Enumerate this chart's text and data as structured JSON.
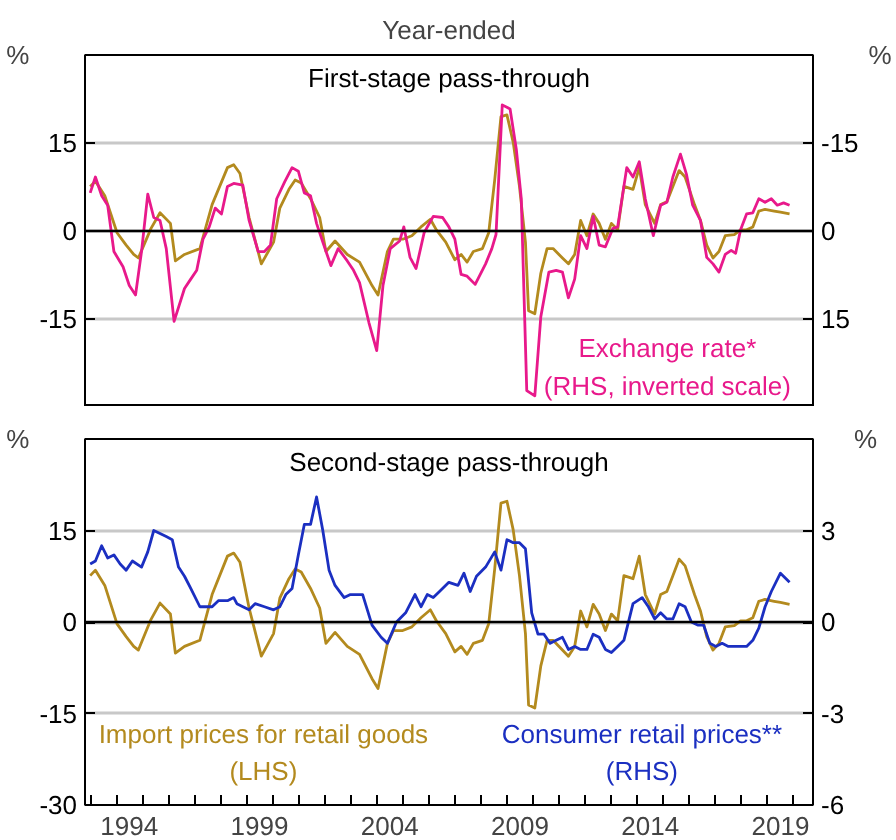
{
  "chart_data": [
    {
      "type": "line",
      "subtitle": "Year-ended",
      "title": "First-stage pass-through",
      "ylabel": "%",
      "y2label": "%",
      "xlim": [
        1992.8,
        2020.75
      ],
      "ylim": [
        -30,
        30
      ],
      "yticks": [
        -15,
        0,
        15
      ],
      "y2lim": [
        30,
        -30
      ],
      "y2ticks": [
        -15,
        0,
        15
      ],
      "grid": "y",
      "tick_labels": "y",
      "ref_lines": [
        {
          "axis": "y",
          "value": 0,
          "color": "#000000"
        }
      ],
      "series": [
        {
          "color": "#b38a1e",
          "x": [
            1993.0,
            1993.2,
            1993.56,
            1994.03,
            1994.38,
            1994.67,
            1994.85,
            1995.33,
            1995.68,
            1996.08,
            1996.27,
            1996.62,
            1997.21,
            1997.68,
            1998.27,
            1998.51,
            1998.75,
            1999.1,
            1999.57,
            2000.04,
            2000.28,
            2000.63,
            2000.87,
            2001.1,
            2001.46,
            2001.81,
            2002.05,
            2002.4,
            2002.87,
            2003.34,
            2003.82,
            2004.05,
            2004.41,
            2004.64,
            2005.0,
            2005.35,
            2005.7,
            2006.06,
            2006.29,
            2006.65,
            2007.0,
            2007.24,
            2007.47,
            2007.71,
            2008.06,
            2008.3,
            2008.53,
            2008.77,
            2009.0,
            2009.24,
            2009.48,
            2009.71,
            2009.83,
            2010.07,
            2010.3,
            2010.54,
            2010.77,
            2011.13,
            2011.36,
            2011.6,
            2011.83,
            2012.07,
            2012.31,
            2012.54,
            2012.78,
            2013.01,
            2013.25,
            2013.49,
            2013.84,
            2014.08,
            2014.31,
            2014.67,
            2014.9,
            2015.14,
            2015.37,
            2015.61,
            2015.84,
            2016.2,
            2016.43,
            2016.67,
            2016.91,
            2017.14,
            2017.38,
            2017.73,
            2017.97,
            2018.2,
            2018.44,
            2018.67,
            2018.91,
            2019.26,
            2019.5,
            2019.85
          ],
          "values": [
            7.6,
            8.5,
            6.0,
            -0.3,
            -2.4,
            -4.0,
            -4.6,
            0.4,
            3.1,
            1.3,
            -5.1,
            -4.0,
            -3.0,
            4.5,
            10.8,
            11.3,
            9.8,
            2.3,
            -5.6,
            -1.9,
            3.9,
            7.1,
            8.7,
            8.2,
            5.5,
            2.3,
            -3.5,
            -1.7,
            -4.0,
            -5.3,
            -9.3,
            -10.9,
            -3.5,
            -1.4,
            -1.4,
            -0.8,
            0.7,
            2.0,
            0.2,
            -1.9,
            -4.9,
            -4.0,
            -5.3,
            -3.5,
            -3.0,
            -0.3,
            8.7,
            19.5,
            19.8,
            15.1,
            7.6,
            -1.9,
            -13.6,
            -14.1,
            -7.2,
            -3.0,
            -3.0,
            -4.6,
            -5.6,
            -4.0,
            1.8,
            -0.8,
            2.9,
            1.3,
            -1.4,
            1.3,
            0.2,
            7.6,
            7.1,
            10.8,
            4.5,
            1.3,
            4.5,
            5.0,
            7.6,
            10.3,
            9.2,
            4.5,
            1.8,
            -2.4,
            -4.6,
            -3.5,
            -0.8,
            -0.6,
            0.2,
            0.2,
            0.7,
            3.4,
            3.7,
            3.4,
            3.2,
            2.9
          ]
        },
        {
          "name": "Exchange rate*\n(RHS, inverted scale)",
          "color": "#e8198b",
          "axis": "y2",
          "x": [
            1993.0,
            1993.2,
            1993.44,
            1993.67,
            1993.91,
            1994.26,
            1994.5,
            1994.74,
            1994.97,
            1995.21,
            1995.44,
            1995.68,
            1995.92,
            1996.22,
            1996.62,
            1996.86,
            1997.09,
            1997.33,
            1997.57,
            1997.8,
            1998.04,
            1998.27,
            1998.51,
            1998.86,
            1999.1,
            1999.45,
            1999.69,
            1999.92,
            2000.16,
            2000.47,
            2000.75,
            2000.99,
            2001.22,
            2001.46,
            2001.69,
            2001.93,
            2002.24,
            2002.52,
            2002.87,
            2003.11,
            2003.34,
            2003.7,
            2004.0,
            2004.24,
            2004.52,
            2004.88,
            2005.04,
            2005.28,
            2005.51,
            2005.82,
            2006.17,
            2006.53,
            2006.77,
            2007.0,
            2007.24,
            2007.47,
            2007.78,
            2008.18,
            2008.42,
            2008.58,
            2008.82,
            2009.12,
            2009.36,
            2009.55,
            2009.76,
            2010.07,
            2010.3,
            2010.61,
            2010.89,
            2011.13,
            2011.36,
            2011.6,
            2011.83,
            2012.07,
            2012.31,
            2012.54,
            2012.78,
            2013.06,
            2013.25,
            2013.6,
            2013.84,
            2014.08,
            2014.31,
            2014.62,
            2014.9,
            2015.14,
            2015.37,
            2015.66,
            2015.89,
            2016.13,
            2016.43,
            2016.67,
            2016.91,
            2017.14,
            2017.38,
            2017.61,
            2017.78,
            2017.97,
            2018.2,
            2018.44,
            2018.67,
            2018.91,
            2019.15,
            2019.38,
            2019.62,
            2019.85
          ],
          "values": [
            -6.5,
            -9.2,
            -6.0,
            -4.4,
            3.5,
            6.1,
            9.3,
            10.9,
            3.5,
            -6.3,
            -2.3,
            -1.8,
            3.0,
            15.4,
            9.8,
            8.2,
            6.7,
            1.4,
            -0.7,
            -3.9,
            -2.9,
            -7.6,
            -8.1,
            -7.8,
            -1.8,
            3.5,
            3.5,
            2.4,
            -5.5,
            -8.4,
            -10.8,
            -10.2,
            -6.5,
            -6.0,
            -1.3,
            1.9,
            5.9,
            3.0,
            5.1,
            6.7,
            8.8,
            15.6,
            20.4,
            9.3,
            3.0,
            1.7,
            -0.7,
            4.5,
            6.4,
            0.3,
            -2.5,
            -2.3,
            -0.7,
            1.4,
            7.4,
            7.7,
            9.1,
            5.6,
            3.0,
            0.6,
            -21.5,
            -20.8,
            -13.9,
            -5.5,
            27.2,
            28.1,
            14.6,
            7.0,
            6.7,
            7.0,
            11.4,
            8.2,
            0.8,
            3.0,
            -2.5,
            2.4,
            2.7,
            -0.4,
            -0.7,
            -10.8,
            -9.2,
            -11.8,
            -5.5,
            0.8,
            -4.4,
            -4.9,
            -9.2,
            -13.1,
            -9.7,
            -4.4,
            -1.8,
            4.5,
            5.6,
            7.0,
            4.0,
            3.3,
            3.8,
            -0.2,
            -2.9,
            -3.1,
            -5.5,
            -4.9,
            -5.5,
            -4.4,
            -4.8,
            -4.4
          ]
        }
      ]
    },
    {
      "type": "line",
      "title": "Second-stage pass-through",
      "ylabel": "%",
      "y2label": "%",
      "xlim": [
        1992.8,
        2020.75
      ],
      "ylim": [
        -30,
        30
      ],
      "yticks": [
        -30,
        -15,
        0,
        15
      ],
      "y2lim": [
        -6,
        6
      ],
      "y2ticks": [
        -6,
        -3,
        0,
        3
      ],
      "grid": "y",
      "ref_lines": [
        {
          "axis": "y",
          "value": 0,
          "color": "#000000"
        }
      ],
      "xticks": [
        {
          "value": 1993,
          "label": null
        },
        {
          "value": 1994,
          "label": null
        },
        {
          "value": 1994.5,
          "label": "1994"
        },
        {
          "value": 1995,
          "label": null
        },
        {
          "value": 1996,
          "label": null
        },
        {
          "value": 1997,
          "label": null
        },
        {
          "value": 1998,
          "label": null
        },
        {
          "value": 1999,
          "label": null
        },
        {
          "value": 1999.5,
          "label": "1999"
        },
        {
          "value": 2000,
          "label": null
        },
        {
          "value": 2001,
          "label": null
        },
        {
          "value": 2002,
          "label": null
        },
        {
          "value": 2003,
          "label": null
        },
        {
          "value": 2004,
          "label": null
        },
        {
          "value": 2004.5,
          "label": "2004"
        },
        {
          "value": 2005,
          "label": null
        },
        {
          "value": 2006,
          "label": null
        },
        {
          "value": 2007,
          "label": null
        },
        {
          "value": 2008,
          "label": null
        },
        {
          "value": 2009,
          "label": null
        },
        {
          "value": 2009.5,
          "label": "2009"
        },
        {
          "value": 2010,
          "label": null
        },
        {
          "value": 2011,
          "label": null
        },
        {
          "value": 2012,
          "label": null
        },
        {
          "value": 2013,
          "label": null
        },
        {
          "value": 2014,
          "label": null
        },
        {
          "value": 2014.5,
          "label": "2014"
        },
        {
          "value": 2015,
          "label": null
        },
        {
          "value": 2016,
          "label": null
        },
        {
          "value": 2017,
          "label": null
        },
        {
          "value": 2018,
          "label": null
        },
        {
          "value": 2019,
          "label": null
        },
        {
          "value": 2019.5,
          "label": "2019"
        },
        {
          "value": 2020,
          "label": null
        }
      ],
      "series": [
        {
          "name": "Import prices for retail goods\n(LHS)",
          "color": "#b38a1e",
          "x": [
            1993.0,
            1993.2,
            1993.56,
            1994.03,
            1994.38,
            1994.67,
            1994.85,
            1995.33,
            1995.68,
            1996.08,
            1996.27,
            1996.62,
            1997.21,
            1997.68,
            1998.27,
            1998.51,
            1998.75,
            1999.1,
            1999.57,
            2000.04,
            2000.28,
            2000.63,
            2000.87,
            2001.1,
            2001.46,
            2001.81,
            2002.05,
            2002.4,
            2002.87,
            2003.34,
            2003.82,
            2004.05,
            2004.41,
            2004.64,
            2005.0,
            2005.35,
            2005.7,
            2006.06,
            2006.29,
            2006.65,
            2007.0,
            2007.24,
            2007.47,
            2007.71,
            2008.06,
            2008.3,
            2008.53,
            2008.77,
            2009.0,
            2009.24,
            2009.48,
            2009.71,
            2009.83,
            2010.07,
            2010.3,
            2010.54,
            2010.77,
            2011.13,
            2011.36,
            2011.6,
            2011.83,
            2012.07,
            2012.31,
            2012.54,
            2012.78,
            2013.01,
            2013.25,
            2013.49,
            2013.84,
            2014.08,
            2014.31,
            2014.67,
            2014.9,
            2015.14,
            2015.37,
            2015.61,
            2015.84,
            2016.2,
            2016.43,
            2016.67,
            2016.91,
            2017.14,
            2017.38,
            2017.73,
            2017.97,
            2018.2,
            2018.44,
            2018.67,
            2018.91,
            2019.26,
            2019.5,
            2019.85
          ],
          "values": [
            7.6,
            8.5,
            6.0,
            -0.3,
            -2.4,
            -4.0,
            -4.6,
            0.4,
            3.1,
            1.3,
            -5.1,
            -4.0,
            -3.0,
            4.5,
            10.8,
            11.3,
            9.8,
            2.3,
            -5.6,
            -1.9,
            3.9,
            7.1,
            8.7,
            8.2,
            5.5,
            2.3,
            -3.5,
            -1.7,
            -4.0,
            -5.3,
            -9.3,
            -10.9,
            -3.5,
            -1.4,
            -1.4,
            -0.8,
            0.7,
            2.0,
            0.2,
            -1.9,
            -4.9,
            -4.0,
            -5.3,
            -3.5,
            -3.0,
            -0.3,
            8.7,
            19.5,
            19.8,
            15.1,
            7.6,
            -1.9,
            -13.6,
            -14.1,
            -7.2,
            -3.0,
            -3.0,
            -4.6,
            -5.6,
            -4.0,
            1.8,
            -0.8,
            2.9,
            1.3,
            -1.4,
            1.3,
            0.2,
            7.6,
            7.1,
            10.8,
            4.5,
            1.3,
            4.5,
            5.0,
            7.6,
            10.3,
            9.2,
            4.5,
            1.8,
            -2.4,
            -4.6,
            -3.5,
            -0.8,
            -0.6,
            0.2,
            0.2,
            0.7,
            3.4,
            3.7,
            3.4,
            3.2,
            2.9
          ]
        },
        {
          "name": "Consumer retail prices**\n(RHS)",
          "color": "#1b2fc1",
          "axis": "y2",
          "x": [
            1993.0,
            1993.2,
            1993.44,
            1993.67,
            1993.91,
            1994.15,
            1994.38,
            1994.62,
            1994.97,
            1995.21,
            1995.44,
            1995.68,
            1995.92,
            1996.15,
            1996.39,
            1996.62,
            1996.86,
            1997.21,
            1997.68,
            1997.92,
            1998.27,
            1998.51,
            1998.63,
            1998.86,
            1999.1,
            1999.33,
            1999.69,
            2000.04,
            2000.28,
            2000.51,
            2000.75,
            2000.99,
            2001.22,
            2001.46,
            2001.69,
            2001.93,
            2002.17,
            2002.4,
            2002.75,
            2002.99,
            2003.46,
            2003.82,
            2004.17,
            2004.41,
            2004.76,
            2005.11,
            2005.47,
            2005.7,
            2005.94,
            2006.17,
            2006.41,
            2006.77,
            2007.12,
            2007.35,
            2007.59,
            2007.83,
            2008.18,
            2008.53,
            2008.77,
            2009.0,
            2009.24,
            2009.48,
            2009.71,
            2009.95,
            2010.19,
            2010.42,
            2010.66,
            2010.89,
            2011.13,
            2011.36,
            2011.6,
            2011.83,
            2012.07,
            2012.31,
            2012.54,
            2012.78,
            2013.01,
            2013.25,
            2013.49,
            2013.84,
            2014.19,
            2014.43,
            2014.67,
            2014.9,
            2015.14,
            2015.37,
            2015.61,
            2015.84,
            2016.08,
            2016.32,
            2016.55,
            2016.79,
            2017.02,
            2017.26,
            2017.5,
            2017.97,
            2018.2,
            2018.44,
            2018.67,
            2018.91,
            2019.15,
            2019.5,
            2019.85
          ],
          "values": [
            1.9,
            2.0,
            2.5,
            2.1,
            2.2,
            1.9,
            1.7,
            2.0,
            1.8,
            2.3,
            3.0,
            2.9,
            2.8,
            2.7,
            1.8,
            1.5,
            1.1,
            0.5,
            0.5,
            0.7,
            0.7,
            0.8,
            0.6,
            0.5,
            0.4,
            0.6,
            0.5,
            0.4,
            0.5,
            0.9,
            1.1,
            2.2,
            3.2,
            3.2,
            4.1,
            3.0,
            1.7,
            1.2,
            0.8,
            0.9,
            0.9,
            -0.1,
            -0.5,
            -0.7,
            0.0,
            0.3,
            0.9,
            0.5,
            0.9,
            0.8,
            1.0,
            1.3,
            1.2,
            1.6,
            1.0,
            1.5,
            1.8,
            2.3,
            1.7,
            2.7,
            2.6,
            2.6,
            2.4,
            0.3,
            -0.4,
            -0.4,
            -0.7,
            -0.6,
            -0.5,
            -0.9,
            -0.8,
            -0.9,
            -0.9,
            -0.4,
            -0.5,
            -0.9,
            -1.0,
            -0.8,
            -0.6,
            0.6,
            0.8,
            0.5,
            0.1,
            0.3,
            0.1,
            0.1,
            0.6,
            0.5,
            0.0,
            -0.1,
            -0.1,
            -0.7,
            -0.8,
            -0.7,
            -0.8,
            -0.8,
            -0.8,
            -0.6,
            -0.2,
            0.5,
            1.0,
            1.6,
            1.3
          ]
        }
      ]
    }
  ]
}
